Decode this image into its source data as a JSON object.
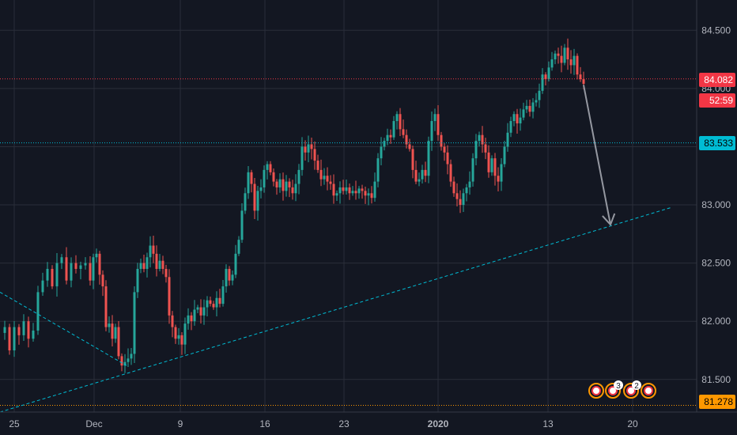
{
  "chart_data": {
    "type": "candlestick",
    "x_tick_labels": [
      "25",
      "Dec",
      "9",
      "16",
      "23",
      "2020",
      "13",
      "20"
    ],
    "y_tick_labels": [
      "84.500",
      "84.000",
      "83.500",
      "83.000",
      "82.500",
      "82.000",
      "81.500"
    ],
    "ylim": [
      81.22,
      84.76
    ],
    "grid": true,
    "series_points": [
      [
        0,
        81.9
      ],
      [
        6,
        81.95
      ],
      [
        12,
        81.75
      ],
      [
        18,
        81.95
      ],
      [
        24,
        81.88
      ],
      [
        30,
        82.0
      ],
      [
        36,
        81.85
      ],
      [
        42,
        81.92
      ],
      [
        48,
        82.25
      ],
      [
        54,
        82.35
      ],
      [
        60,
        82.45
      ],
      [
        66,
        82.3
      ],
      [
        72,
        82.5
      ],
      [
        78,
        82.55
      ],
      [
        84,
        82.35
      ],
      [
        90,
        82.5
      ],
      [
        96,
        82.45
      ],
      [
        102,
        82.48
      ],
      [
        108,
        82.5
      ],
      [
        114,
        82.35
      ],
      [
        118,
        82.55
      ],
      [
        122,
        82.58
      ],
      [
        126,
        82.4
      ],
      [
        130,
        82.3
      ],
      [
        134,
        81.95
      ],
      [
        138,
        81.98
      ],
      [
        142,
        81.85
      ],
      [
        146,
        81.95
      ],
      [
        150,
        81.7
      ],
      [
        154,
        81.62
      ],
      [
        158,
        81.65
      ],
      [
        162,
        81.68
      ],
      [
        166,
        81.72
      ],
      [
        170,
        82.25
      ],
      [
        174,
        82.45
      ],
      [
        178,
        82.5
      ],
      [
        182,
        82.45
      ],
      [
        186,
        82.55
      ],
      [
        190,
        82.65
      ],
      [
        194,
        82.58
      ],
      [
        198,
        82.45
      ],
      [
        202,
        82.52
      ],
      [
        206,
        82.45
      ],
      [
        210,
        82.38
      ],
      [
        214,
        82.05
      ],
      [
        218,
        81.95
      ],
      [
        222,
        81.85
      ],
      [
        226,
        81.88
      ],
      [
        230,
        81.8
      ],
      [
        234,
        81.98
      ],
      [
        238,
        82.05
      ],
      [
        242,
        82.0
      ],
      [
        246,
        82.1
      ],
      [
        250,
        82.12
      ],
      [
        254,
        82.05
      ],
      [
        258,
        82.12
      ],
      [
        262,
        82.18
      ],
      [
        266,
        82.15
      ],
      [
        270,
        82.12
      ],
      [
        274,
        82.2
      ],
      [
        278,
        82.15
      ],
      [
        282,
        82.3
      ],
      [
        286,
        82.45
      ],
      [
        290,
        82.35
      ],
      [
        294,
        82.4
      ],
      [
        298,
        82.58
      ],
      [
        302,
        82.7
      ],
      [
        306,
        82.95
      ],
      [
        310,
        83.1
      ],
      [
        314,
        83.28
      ],
      [
        318,
        83.18
      ],
      [
        322,
        82.95
      ],
      [
        326,
        83.12
      ],
      [
        330,
        83.15
      ],
      [
        334,
        83.3
      ],
      [
        338,
        83.35
      ],
      [
        342,
        83.28
      ],
      [
        346,
        83.2
      ],
      [
        350,
        83.15
      ],
      [
        354,
        83.22
      ],
      [
        358,
        83.12
      ],
      [
        362,
        83.2
      ],
      [
        366,
        83.15
      ],
      [
        370,
        83.1
      ],
      [
        374,
        83.18
      ],
      [
        378,
        83.3
      ],
      [
        382,
        83.5
      ],
      [
        386,
        83.45
      ],
      [
        390,
        83.52
      ],
      [
        394,
        83.48
      ],
      [
        398,
        83.38
      ],
      [
        402,
        83.3
      ],
      [
        406,
        83.22
      ],
      [
        410,
        83.25
      ],
      [
        414,
        83.2
      ],
      [
        418,
        83.18
      ],
      [
        422,
        83.08
      ],
      [
        426,
        83.1
      ],
      [
        430,
        83.15
      ],
      [
        434,
        83.12
      ],
      [
        438,
        83.15
      ],
      [
        442,
        83.1
      ],
      [
        446,
        83.12
      ],
      [
        450,
        83.1
      ],
      [
        454,
        83.14
      ],
      [
        458,
        83.12
      ],
      [
        462,
        83.08
      ],
      [
        466,
        83.1
      ],
      [
        470,
        83.06
      ],
      [
        474,
        83.2
      ],
      [
        478,
        83.4
      ],
      [
        482,
        83.5
      ],
      [
        486,
        83.55
      ],
      [
        490,
        83.6
      ],
      [
        494,
        83.58
      ],
      [
        498,
        83.72
      ],
      [
        502,
        83.78
      ],
      [
        506,
        83.65
      ],
      [
        510,
        83.6
      ],
      [
        514,
        83.52
      ],
      [
        518,
        83.48
      ],
      [
        522,
        83.3
      ],
      [
        526,
        83.2
      ],
      [
        530,
        83.22
      ],
      [
        534,
        83.3
      ],
      [
        538,
        83.25
      ],
      [
        542,
        83.55
      ],
      [
        546,
        83.72
      ],
      [
        550,
        83.78
      ],
      [
        554,
        83.6
      ],
      [
        558,
        83.5
      ],
      [
        562,
        83.45
      ],
      [
        566,
        83.35
      ],
      [
        570,
        83.2
      ],
      [
        574,
        83.1
      ],
      [
        578,
        83.05
      ],
      [
        582,
        83.0
      ],
      [
        586,
        83.1
      ],
      [
        590,
        83.15
      ],
      [
        594,
        83.2
      ],
      [
        598,
        83.4
      ],
      [
        602,
        83.55
      ],
      [
        606,
        83.6
      ],
      [
        610,
        83.52
      ],
      [
        614,
        83.45
      ],
      [
        618,
        83.28
      ],
      [
        622,
        83.4
      ],
      [
        626,
        83.25
      ],
      [
        630,
        83.2
      ],
      [
        634,
        83.35
      ],
      [
        638,
        83.5
      ],
      [
        642,
        83.62
      ],
      [
        646,
        83.72
      ],
      [
        650,
        83.78
      ],
      [
        654,
        83.7
      ],
      [
        658,
        83.75
      ],
      [
        662,
        83.82
      ],
      [
        666,
        83.85
      ],
      [
        670,
        83.8
      ],
      [
        674,
        83.88
      ],
      [
        678,
        83.9
      ],
      [
        682,
        83.98
      ],
      [
        686,
        84.12
      ],
      [
        690,
        84.08
      ],
      [
        694,
        84.18
      ],
      [
        698,
        84.25
      ],
      [
        702,
        84.3
      ],
      [
        706,
        84.28
      ],
      [
        710,
        84.22
      ],
      [
        714,
        84.35
      ],
      [
        718,
        84.25
      ],
      [
        722,
        84.2
      ],
      [
        726,
        84.28
      ],
      [
        730,
        84.12
      ],
      [
        734,
        84.08
      ],
      [
        738,
        84.04
      ]
    ],
    "horizontal_lines": [
      {
        "value": 84.082,
        "color": "#f23645",
        "style": "dotted"
      },
      {
        "value": 83.533,
        "color": "#00bcd4",
        "style": "dotted"
      },
      {
        "value": 81.278,
        "color": "#ff9800",
        "style": "dotted"
      }
    ],
    "trendlines": [
      {
        "from": {
          "x": 0,
          "y": 81.22
        },
        "to": {
          "x": 850,
          "y": 82.98
        },
        "color": "#00bcd4",
        "style": "dashed"
      },
      {
        "from": {
          "x": 0,
          "y": 82.25
        },
        "to": {
          "x": 160,
          "y": 81.62
        },
        "color": "#00bcd4",
        "style": "dashed"
      }
    ],
    "projection_arrow": {
      "from": {
        "x": 738,
        "y": 84.03
      },
      "to": {
        "x": 772,
        "y": 82.83
      },
      "color": "#9598a1"
    },
    "price_tags": [
      {
        "label": "84.082",
        "value": 84.082,
        "bg": "#f23645",
        "fg": "#ffffff"
      },
      {
        "label": "52:59",
        "value": 83.9,
        "bg": "#f23645",
        "fg": "#ffffff"
      },
      {
        "label": "83.533",
        "value": 83.533,
        "bg": "#00bcd4",
        "fg": "#000000"
      },
      {
        "label": "81.278",
        "value": 81.278,
        "bg": "#ff9800",
        "fg": "#000000"
      }
    ],
    "event_markers": [
      {
        "x": 754,
        "badge": ""
      },
      {
        "x": 775,
        "badge": "3"
      },
      {
        "x": 798,
        "badge": "2"
      },
      {
        "x": 820,
        "badge": ""
      }
    ],
    "colors": {
      "background": "#131722",
      "grid": "#2a2e39",
      "up": "#26a69a",
      "down": "#ef5350",
      "axis_text": "#b2b5be"
    }
  }
}
